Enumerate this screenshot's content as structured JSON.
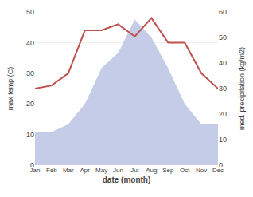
{
  "chart_data": {
    "type": "line",
    "categories": [
      "Jan",
      "Feb",
      "Mar",
      "Apr",
      "May",
      "Jun",
      "Jul",
      "Aug",
      "Sep",
      "Oct",
      "Nov",
      "Dec"
    ],
    "series": [
      {
        "type": "area",
        "axis": "y2",
        "color": "#c5cce8",
        "values": [
          13,
          13,
          16,
          24,
          38,
          44,
          57,
          50,
          38,
          24,
          16,
          16
        ]
      },
      {
        "type": "line",
        "color": "#c0504d",
        "values": [
          25,
          26,
          30,
          44,
          44,
          46,
          42,
          48,
          40,
          40,
          30,
          25
        ]
      }
    ],
    "xlabel": "date (month)",
    "ylabel": "max temp (C)",
    "y2label": "med. precipitation (kg/m2)",
    "ylim": [
      0,
      50
    ],
    "yticks": [
      0,
      10,
      20,
      30,
      40,
      50
    ],
    "y2lim": [
      0,
      60
    ],
    "y2ticks": [
      0,
      10,
      20,
      30,
      40,
      50,
      60
    ],
    "grid": true
  }
}
